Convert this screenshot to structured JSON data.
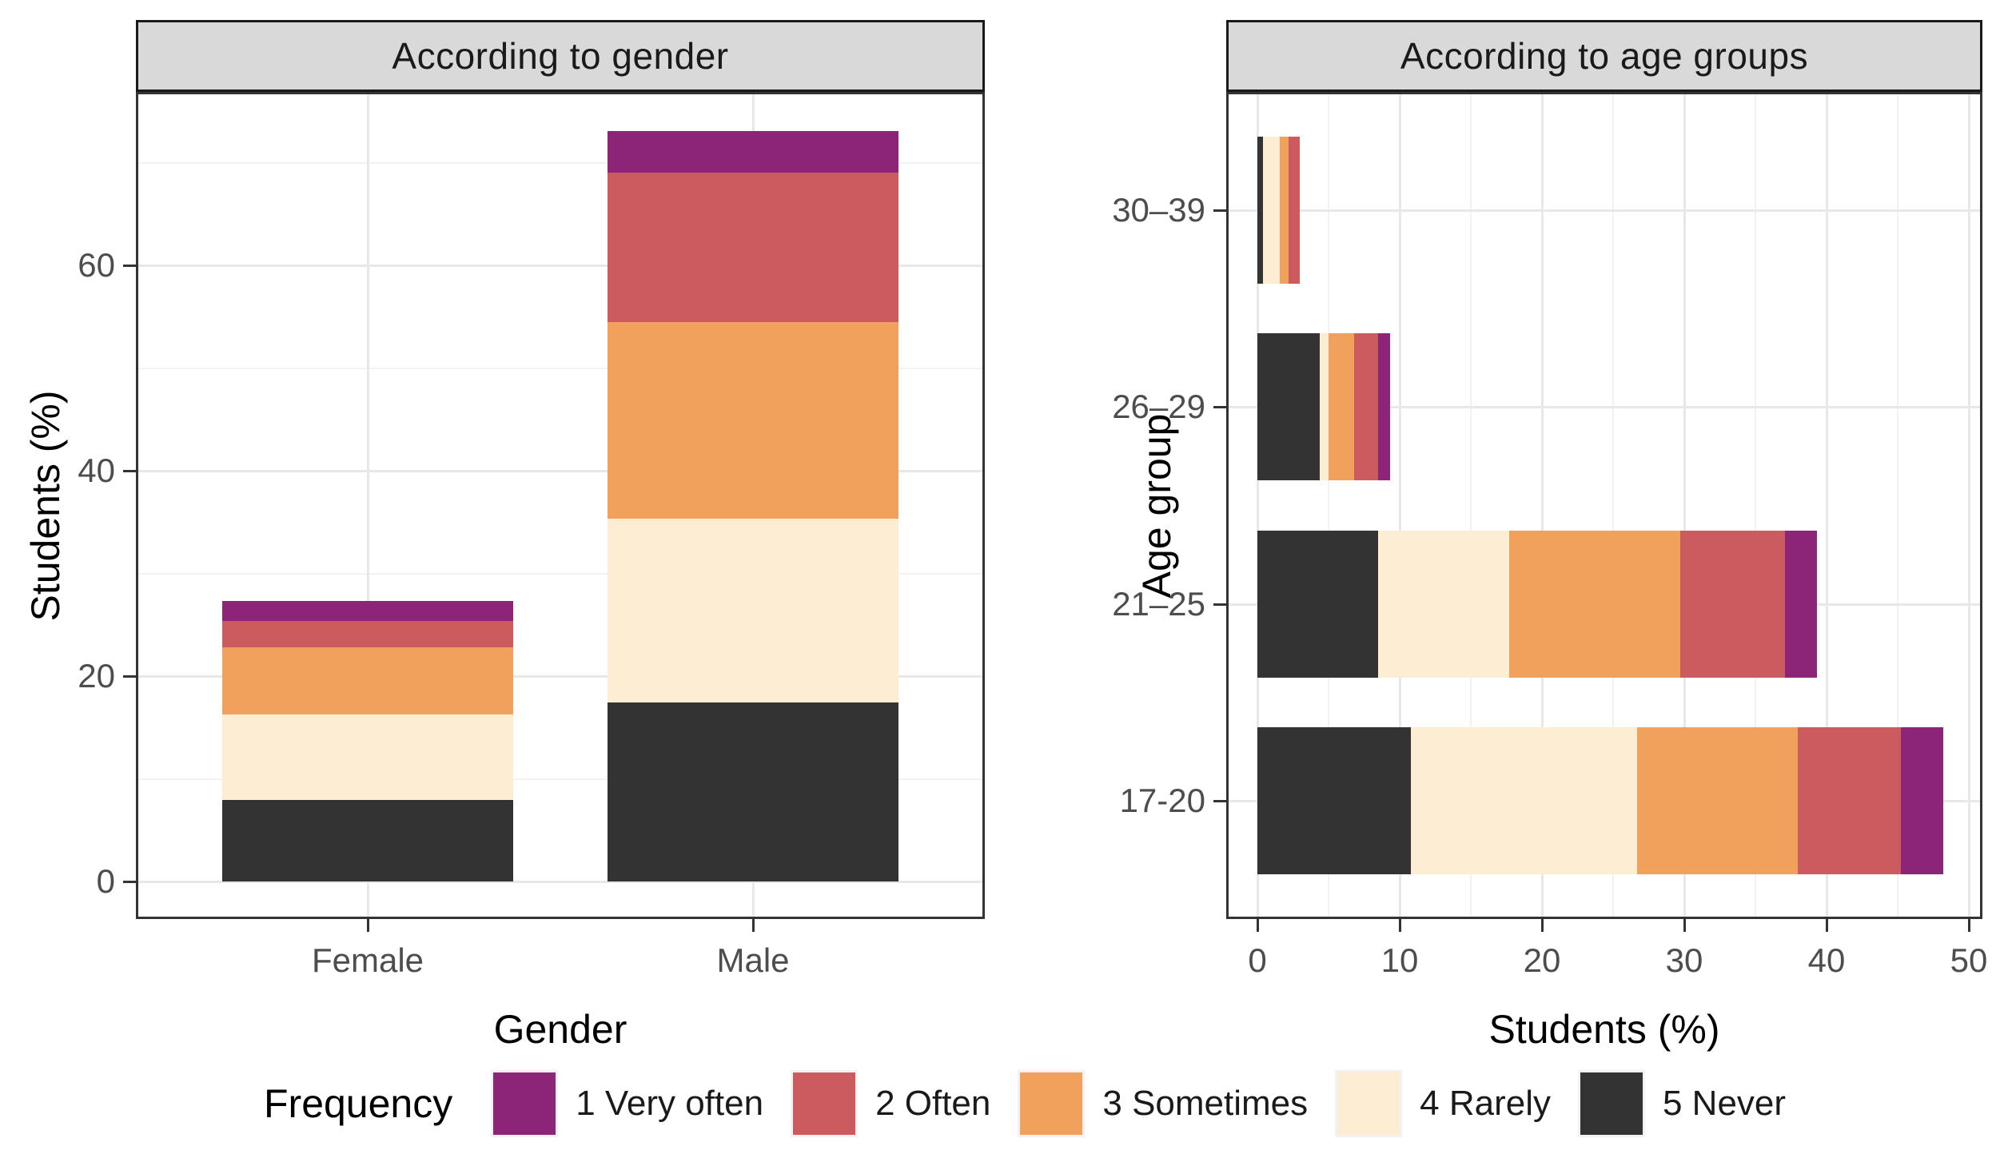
{
  "figure": {
    "background_color": "#ffffff",
    "text_color": "#000000",
    "tick_label_color": "#4d4d4d",
    "strip_background": "#d9d9d9",
    "gridline_major_color": "#e8e8e8",
    "gridline_minor_color": "#f2f2f2"
  },
  "panels": {
    "gender": {
      "strip_title": "According to gender",
      "x_title": "Gender",
      "y_title": "Students (%)",
      "y_ticks": [
        0,
        20,
        40,
        60
      ],
      "y_minor_ticks": [
        10,
        30,
        50,
        70
      ],
      "categories": [
        "Female",
        "Male"
      ]
    },
    "age": {
      "strip_title": "According to age groups",
      "x_title": "Students (%)",
      "y_title": "Age group",
      "x_ticks": [
        0,
        10,
        20,
        30,
        40,
        50
      ],
      "x_minor_ticks": [
        5,
        15,
        25,
        35,
        45
      ],
      "categories_top_to_bottom": [
        "30–39",
        "26–29",
        "21–25",
        "17-20"
      ]
    }
  },
  "legend": {
    "title": "Frequency",
    "items": [
      {
        "label": "1 Very often",
        "color": "#8C2577"
      },
      {
        "label": "2 Often",
        "color": "#CC5B5F"
      },
      {
        "label": "3 Sometimes",
        "color": "#F2A15C"
      },
      {
        "label": "4 Rarely",
        "color": "#FDEDD3"
      },
      {
        "label": "5 Never",
        "color": "#333333"
      }
    ]
  },
  "chart_data": [
    {
      "type": "bar",
      "orientation": "vertical",
      "stacked": true,
      "title": "According to gender",
      "xlabel": "Gender",
      "ylabel": "Students (%)",
      "categories": [
        "Female",
        "Male"
      ],
      "series": [
        {
          "name": "1 Very often",
          "color": "#8C2577",
          "values": [
            1.9,
            4.1
          ]
        },
        {
          "name": "2 Often",
          "color": "#CC5B5F",
          "values": [
            2.6,
            14.5
          ]
        },
        {
          "name": "3 Sometimes",
          "color": "#F2A15C",
          "values": [
            6.5,
            19.2
          ]
        },
        {
          "name": "4 Rarely",
          "color": "#FDEDD3",
          "values": [
            8.4,
            17.9
          ]
        },
        {
          "name": "5 Never",
          "color": "#333333",
          "values": [
            7.9,
            17.4
          ]
        }
      ],
      "stack_order_bottom_to_top": [
        "5 Never",
        "4 Rarely",
        "3 Sometimes",
        "2 Often",
        "1 Very often"
      ],
      "category_totals": [
        27.3,
        73.1
      ],
      "ylim": [
        0,
        75
      ],
      "y_ticks": [
        0,
        20,
        40,
        60
      ],
      "grid": true,
      "legend_position": "bottom"
    },
    {
      "type": "bar",
      "orientation": "horizontal",
      "stacked": true,
      "title": "According to age groups",
      "xlabel": "Students (%)",
      "ylabel": "Age group",
      "categories_top_to_bottom": [
        "30–39",
        "26–29",
        "21–25",
        "17-20"
      ],
      "series": [
        {
          "name": "1 Very often",
          "color": "#8C2577",
          "values": [
            0.0,
            0.8,
            2.2,
            3.0
          ]
        },
        {
          "name": "2 Often",
          "color": "#CC5B5F",
          "values": [
            0.8,
            1.7,
            7.4,
            7.2
          ]
        },
        {
          "name": "3 Sometimes",
          "color": "#F2A15C",
          "values": [
            0.6,
            1.8,
            12.0,
            11.3
          ]
        },
        {
          "name": "4 Rarely",
          "color": "#FDEDD3",
          "values": [
            1.2,
            0.6,
            9.2,
            15.9
          ]
        },
        {
          "name": "5 Never",
          "color": "#333333",
          "values": [
            0.4,
            4.4,
            8.5,
            10.8
          ]
        }
      ],
      "stack_order_left_to_right": [
        "5 Never",
        "4 Rarely",
        "3 Sometimes",
        "2 Often",
        "1 Very often"
      ],
      "category_totals": [
        3.0,
        9.3,
        39.3,
        48.2
      ],
      "xlim": [
        0,
        50
      ],
      "x_ticks": [
        0,
        10,
        20,
        30,
        40,
        50
      ],
      "grid": true,
      "legend_position": "bottom"
    }
  ]
}
